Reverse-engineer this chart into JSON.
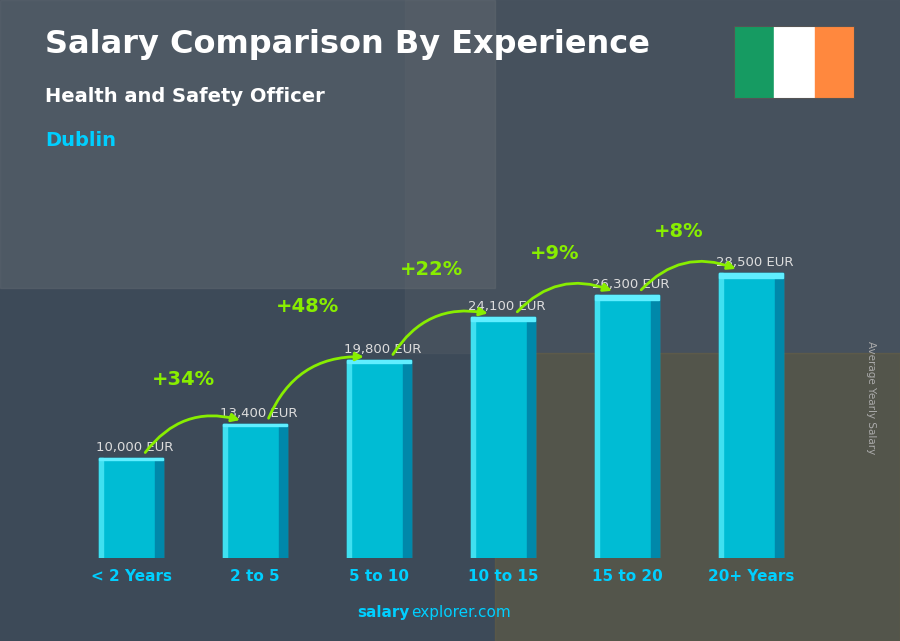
{
  "title": "Salary Comparison By Experience",
  "subtitle": "Health and Safety Officer",
  "city": "Dublin",
  "categories": [
    "< 2 Years",
    "2 to 5",
    "5 to 10",
    "10 to 15",
    "15 to 20",
    "20+ Years"
  ],
  "values": [
    10000,
    13400,
    19800,
    24100,
    26300,
    28500
  ],
  "labels": [
    "10,000 EUR",
    "13,400 EUR",
    "19,800 EUR",
    "24,100 EUR",
    "26,300 EUR",
    "28,500 EUR"
  ],
  "pct_changes": [
    "+34%",
    "+48%",
    "+22%",
    "+9%",
    "+8%"
  ],
  "bar_color_main": "#00bcd4",
  "bar_color_light": "#40e0f0",
  "bar_color_dark": "#0088aa",
  "bar_color_top": "#60eeff",
  "background_color": "#3a4555",
  "title_color": "#ffffff",
  "subtitle_color": "#ffffff",
  "city_color": "#00cfff",
  "label_color": "#dddddd",
  "pct_color": "#88ee00",
  "arrow_color": "#88ee00",
  "xticklabel_color": "#00cfff",
  "watermark_bold": "salary",
  "watermark_normal": "explorer.com",
  "watermark_color": "#00cfff",
  "ylabel_text": "Average Yearly Salary",
  "ylabel_color": "#aaaaaa",
  "ylim": [
    0,
    34000
  ],
  "flag_green": "#169B62",
  "flag_white": "#FFFFFF",
  "flag_orange": "#FF883E"
}
